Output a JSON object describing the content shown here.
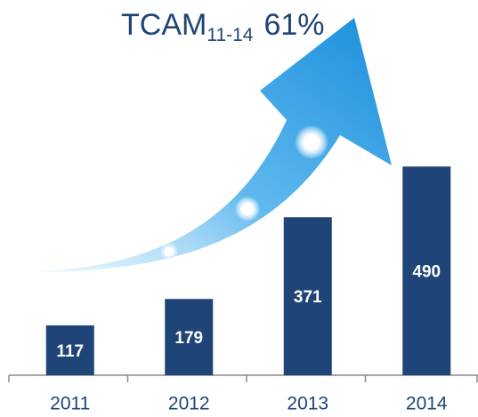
{
  "chart_data": {
    "type": "bar",
    "title": {
      "main": "TCAM",
      "subscript": "11-14",
      "value": "61%"
    },
    "categories": [
      "2011",
      "2012",
      "2013",
      "2014"
    ],
    "values": [
      117,
      179,
      371,
      490
    ],
    "color": "#1f4477",
    "label_color": "#ffffff"
  }
}
